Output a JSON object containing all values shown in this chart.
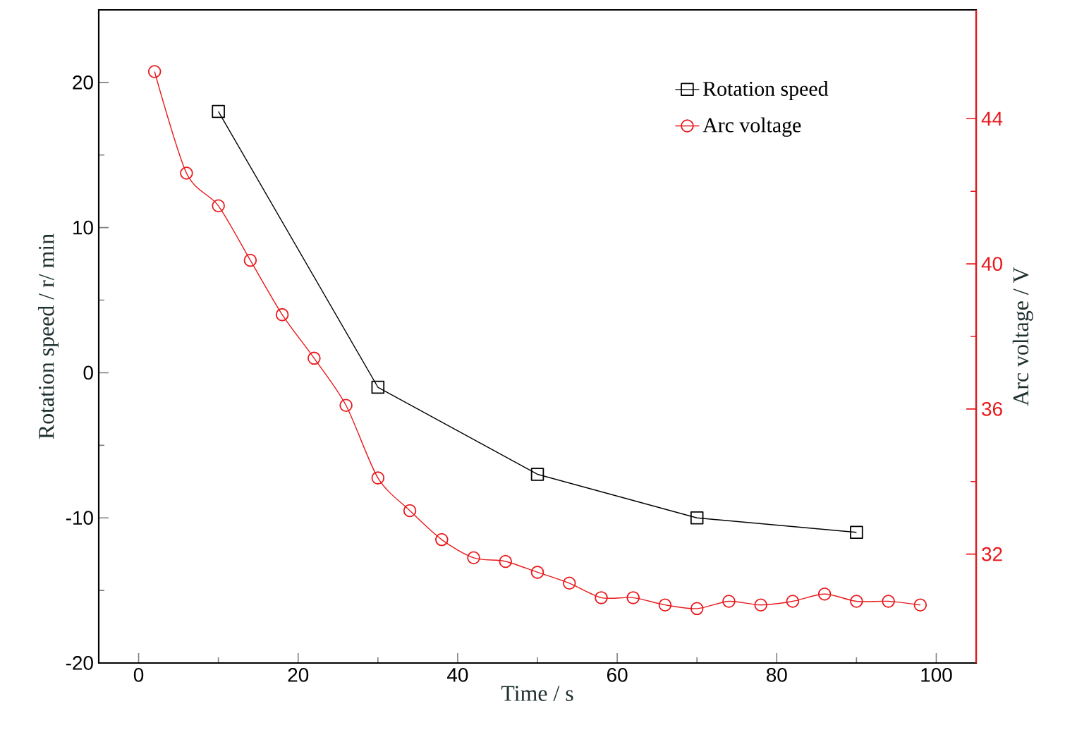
{
  "chart_data": {
    "type": "line",
    "xlabel": "Time / s",
    "ylabel": "Rotation speed / r/ min",
    "y2label": "Arc  voltage / V",
    "xlim": [
      -5,
      105
    ],
    "xticks": [
      0,
      20,
      40,
      60,
      80,
      100
    ],
    "ylim": [
      -20,
      25
    ],
    "yticks": [
      -20,
      -10,
      0,
      10,
      20
    ],
    "y2lim": [
      29,
      47
    ],
    "y2ticks": [
      32,
      36,
      40,
      44
    ],
    "legend": "top right",
    "grid": false,
    "series": [
      {
        "name": "Rotation speed",
        "color": "#000000",
        "marker": "square",
        "x": [
          10,
          30,
          50,
          70,
          90
        ],
        "values": [
          18,
          -1,
          -7,
          -10,
          -11
        ]
      },
      {
        "name": "Arc voltage",
        "axis": "y2",
        "color": "#e8191c",
        "marker": "circle",
        "x": [
          2,
          6,
          10,
          14,
          18,
          22,
          26,
          30,
          34,
          38,
          42,
          46,
          50,
          54,
          58,
          62,
          66,
          70,
          74,
          78,
          82,
          86,
          90,
          94,
          98
        ],
        "values": [
          45.3,
          42.5,
          41.6,
          40.1,
          38.6,
          37.4,
          36.1,
          34.1,
          33.2,
          32.4,
          31.9,
          31.8,
          31.5,
          31.2,
          30.8,
          30.8,
          30.6,
          30.5,
          30.7,
          30.6,
          30.7,
          30.9,
          30.7,
          30.7,
          30.6
        ]
      }
    ]
  }
}
